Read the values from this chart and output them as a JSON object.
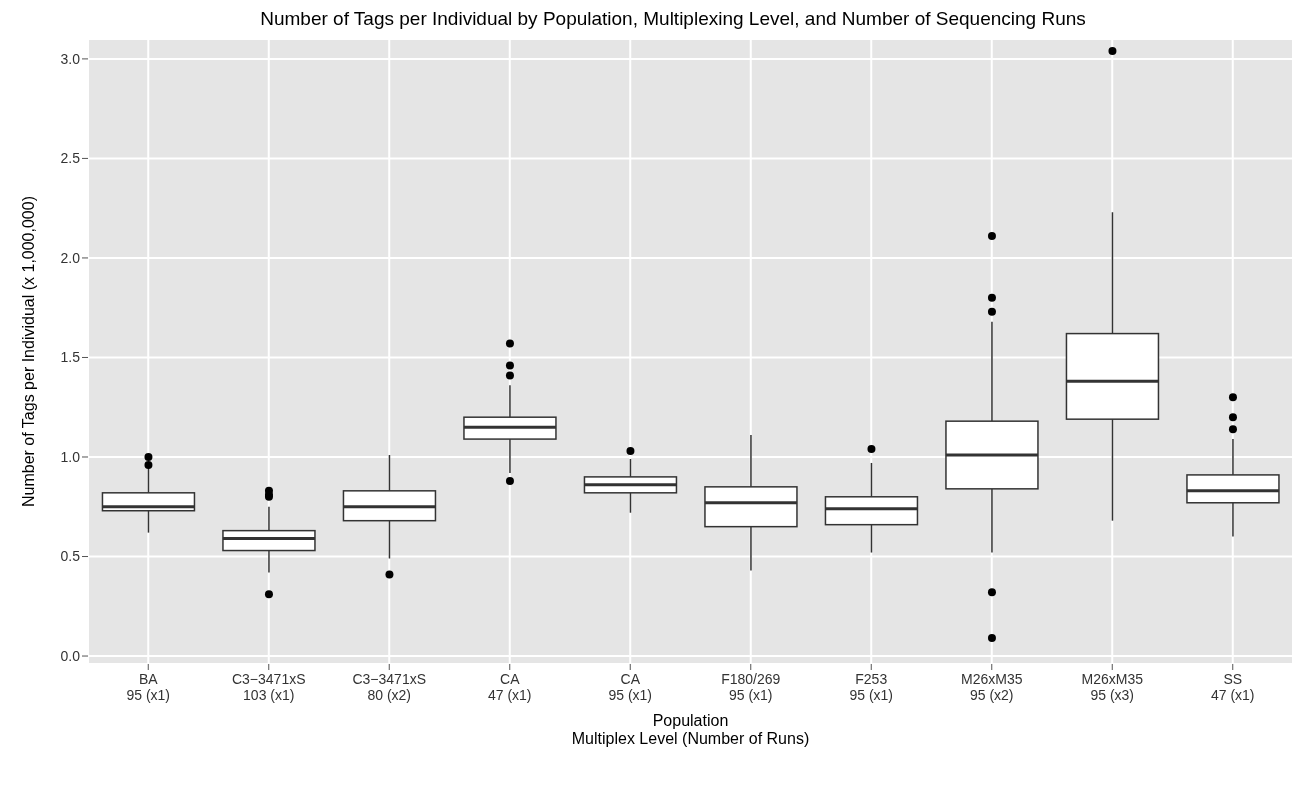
{
  "chart_data": {
    "type": "box",
    "title": "Number of Tags per Individual by Population, Multiplexing Level, and Number of Sequencing Runs",
    "xlabel": "Population\nMultiplex Level (Number of Runs)",
    "ylabel": "Number of Tags per Individual (x 1,000,000)",
    "categories": [
      "BA\n95 (x1)",
      "C3−3471xS\n103 (x1)",
      "C3−3471xS\n80 (x2)",
      "CA\n47 (x1)",
      "CA\n95 (x1)",
      "F180/269\n95 (x1)",
      "F253\n95 (x1)",
      "M26xM35\n95 (x2)",
      "M26xM35\n95 (x3)",
      "SS\n47 (x1)"
    ],
    "boxes": [
      {
        "low": 0.62,
        "q1": 0.73,
        "median": 0.75,
        "q3": 0.82,
        "high": 0.95,
        "outliers": [
          1.0,
          0.96
        ]
      },
      {
        "low": 0.42,
        "q1": 0.53,
        "median": 0.59,
        "q3": 0.63,
        "high": 0.75,
        "outliers": [
          0.83,
          0.81,
          0.8,
          0.31
        ]
      },
      {
        "low": 0.49,
        "q1": 0.68,
        "median": 0.75,
        "q3": 0.83,
        "high": 1.01,
        "outliers": [
          0.41
        ]
      },
      {
        "low": 0.92,
        "q1": 1.09,
        "median": 1.15,
        "q3": 1.2,
        "high": 1.36,
        "outliers": [
          1.57,
          1.46,
          1.41,
          0.88
        ]
      },
      {
        "low": 0.72,
        "q1": 0.82,
        "median": 0.86,
        "q3": 0.9,
        "high": 0.99,
        "outliers": [
          1.03
        ]
      },
      {
        "low": 0.43,
        "q1": 0.65,
        "median": 0.77,
        "q3": 0.85,
        "high": 1.11
      },
      {
        "low": 0.52,
        "q1": 0.66,
        "median": 0.74,
        "q3": 0.8,
        "high": 0.97,
        "outliers": [
          1.04
        ]
      },
      {
        "low": 0.52,
        "q1": 0.84,
        "median": 1.01,
        "q3": 1.18,
        "high": 1.68,
        "outliers": [
          2.11,
          1.8,
          1.73,
          0.32,
          0.09
        ]
      },
      {
        "low": 0.68,
        "q1": 1.19,
        "median": 1.38,
        "q3": 1.62,
        "high": 2.23,
        "outliers": [
          3.04
        ]
      },
      {
        "low": 0.6,
        "q1": 0.77,
        "median": 0.83,
        "q3": 0.91,
        "high": 1.09,
        "outliers": [
          1.3,
          1.2,
          1.14
        ]
      }
    ],
    "color": "#ffffff",
    "ylim": [
      -0.04,
      3.1
    ],
    "yticks": [
      {
        "value": 0,
        "label": "0.0"
      },
      0.5,
      {
        "value": 1,
        "label": "1.0"
      },
      1.5,
      {
        "value": 2,
        "label": "2.0"
      },
      2.5,
      {
        "value": 3,
        "label": "3.0"
      }
    ],
    "grid": true
  }
}
